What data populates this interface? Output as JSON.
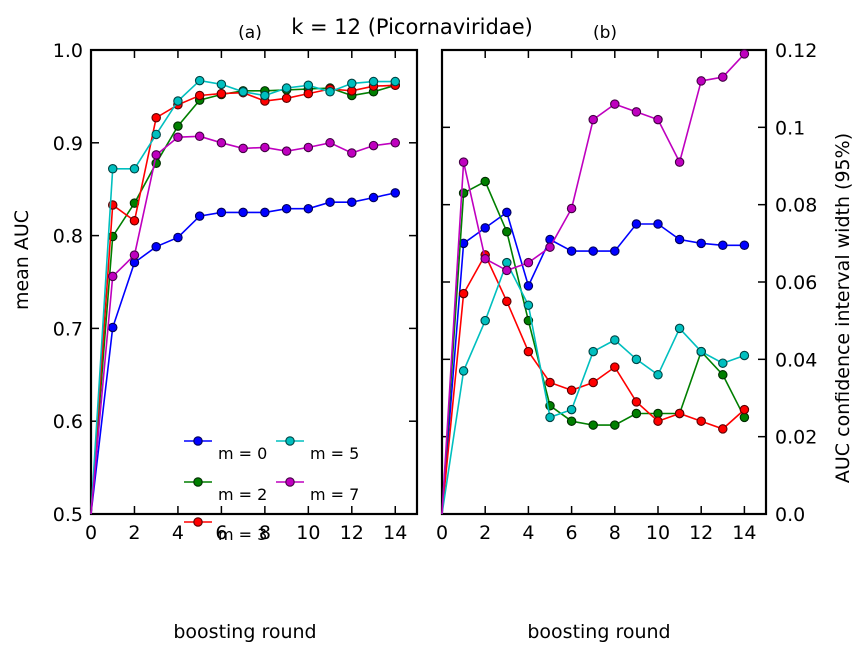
{
  "figure": {
    "title": "k = 12 (Picornaviridae)"
  },
  "chart_data": [
    {
      "type": "line",
      "panel_label": "(a)",
      "xlabel": "boosting round",
      "ylabel": "mean AUC",
      "xlim": [
        0,
        15
      ],
      "ylim": [
        0.5,
        1.0
      ],
      "xticks": [
        "0",
        "2",
        "4",
        "6",
        "8",
        "10",
        "12",
        "14"
      ],
      "yticks": [
        "0.5",
        "0.6",
        "0.7",
        "0.8",
        "0.9",
        "1.0"
      ],
      "grid": false,
      "legend": "lower-center",
      "x": [
        0,
        1,
        2,
        3,
        4,
        5,
        6,
        7,
        8,
        9,
        10,
        11,
        12,
        13,
        14
      ],
      "series": [
        {
          "name": "m = 0",
          "color": "#0000ff",
          "values": [
            0.5,
            0.701,
            0.771,
            0.788,
            0.798,
            0.821,
            0.825,
            0.825,
            0.825,
            0.829,
            0.829,
            0.836,
            0.836,
            0.841,
            0.846
          ]
        },
        {
          "name": "m = 2",
          "color": "#007f00",
          "values": [
            0.5,
            0.799,
            0.835,
            0.878,
            0.918,
            0.946,
            0.952,
            0.956,
            0.956,
            0.957,
            0.958,
            0.959,
            0.951,
            0.955,
            0.962
          ]
        },
        {
          "name": "m = 3",
          "color": "#ff0000",
          "values": [
            0.5,
            0.833,
            0.816,
            0.927,
            0.941,
            0.951,
            0.953,
            0.954,
            0.945,
            0.948,
            0.953,
            0.958,
            0.956,
            0.961,
            0.962
          ]
        },
        {
          "name": "m = 5",
          "color": "#00bfbf",
          "values": [
            0.5,
            0.872,
            0.872,
            0.909,
            0.945,
            0.967,
            0.963,
            0.955,
            0.951,
            0.959,
            0.962,
            0.955,
            0.964,
            0.966,
            0.966
          ]
        },
        {
          "name": "m = 7",
          "color": "#bf00bf",
          "values": [
            0.5,
            0.756,
            0.779,
            0.887,
            0.906,
            0.907,
            0.9,
            0.894,
            0.895,
            0.891,
            0.895,
            0.9,
            0.889,
            0.897,
            0.9
          ]
        }
      ]
    },
    {
      "type": "line",
      "panel_label": "(b)",
      "xlabel": "boosting round",
      "ylabel": "AUC confidence interval width (95%)",
      "y_axis_side": "right",
      "xlim": [
        0,
        15
      ],
      "ylim": [
        0.0,
        0.12
      ],
      "xticks": [
        "0",
        "2",
        "4",
        "6",
        "8",
        "10",
        "12",
        "14"
      ],
      "yticks": [
        "0.0",
        "0.02",
        "0.04",
        "0.06",
        "0.08",
        "0.1",
        "0.12"
      ],
      "grid": false,
      "x": [
        0,
        1,
        2,
        3,
        4,
        5,
        6,
        7,
        8,
        9,
        10,
        11,
        12,
        13,
        14
      ],
      "series": [
        {
          "name": "m = 0",
          "color": "#0000ff",
          "values": [
            0.0,
            0.07,
            0.074,
            0.078,
            0.059,
            0.071,
            0.068,
            0.068,
            0.068,
            0.075,
            0.075,
            0.071,
            0.07,
            0.0695,
            0.0695
          ]
        },
        {
          "name": "m = 2",
          "color": "#007f00",
          "values": [
            0.0,
            0.083,
            0.086,
            0.073,
            0.05,
            0.028,
            0.024,
            0.023,
            0.023,
            0.026,
            0.026,
            0.026,
            0.042,
            0.036,
            0.025
          ]
        },
        {
          "name": "m = 3",
          "color": "#ff0000",
          "values": [
            0.0,
            0.057,
            0.067,
            0.055,
            0.042,
            0.034,
            0.032,
            0.034,
            0.038,
            0.029,
            0.024,
            0.026,
            0.024,
            0.022,
            0.027
          ]
        },
        {
          "name": "m = 5",
          "color": "#00bfbf",
          "values": [
            0.0,
            0.037,
            0.05,
            0.065,
            0.054,
            0.025,
            0.027,
            0.042,
            0.045,
            0.04,
            0.036,
            0.048,
            0.042,
            0.039,
            0.041
          ]
        },
        {
          "name": "m = 7",
          "color": "#bf00bf",
          "values": [
            0.0,
            0.091,
            0.066,
            0.063,
            0.065,
            0.069,
            0.079,
            0.102,
            0.106,
            0.104,
            0.102,
            0.091,
            0.112,
            0.113,
            0.119
          ]
        }
      ]
    }
  ]
}
